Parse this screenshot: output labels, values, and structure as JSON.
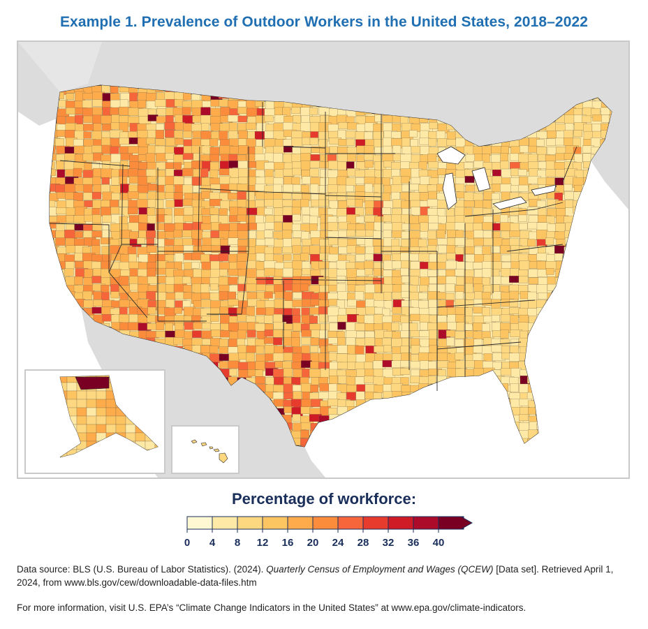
{
  "title": "Example 1. Prevalence of Outdoor Workers in the United States, 2018–2022",
  "legend": {
    "title": "Percentage of workforce:",
    "ticks": [
      "0",
      "4",
      "8",
      "12",
      "16",
      "20",
      "24",
      "28",
      "32",
      "36",
      "40"
    ],
    "colors": [
      "#fff8d2",
      "#fee9a6",
      "#fed880",
      "#fdc462",
      "#fdab4b",
      "#fb8c3c",
      "#f6663a",
      "#e63b2d",
      "#cf1b26",
      "#ad0b2a",
      "#790022"
    ]
  },
  "map": {
    "regions": [
      "contiguous-us",
      "alaska-inset",
      "hawaii-inset"
    ],
    "water_color": "#ffffff",
    "land_other_color": "#dcdcdc",
    "border_color": "#2a2a2a"
  },
  "source": {
    "prefix": "Data source: BLS (U.S. Bureau of Labor Statistics). (2024). ",
    "italic": "Quarterly Census of Employment and Wages (QCEW)",
    "suffix": " [Data set]. Retrieved April 1, 2024, from www.bls.gov/cew/downloadable-data-files.htm"
  },
  "more_info": "For more information, visit U.S. EPA’s “Climate Change Indicators in the United States” at www.epa.gov/climate-indicators."
}
